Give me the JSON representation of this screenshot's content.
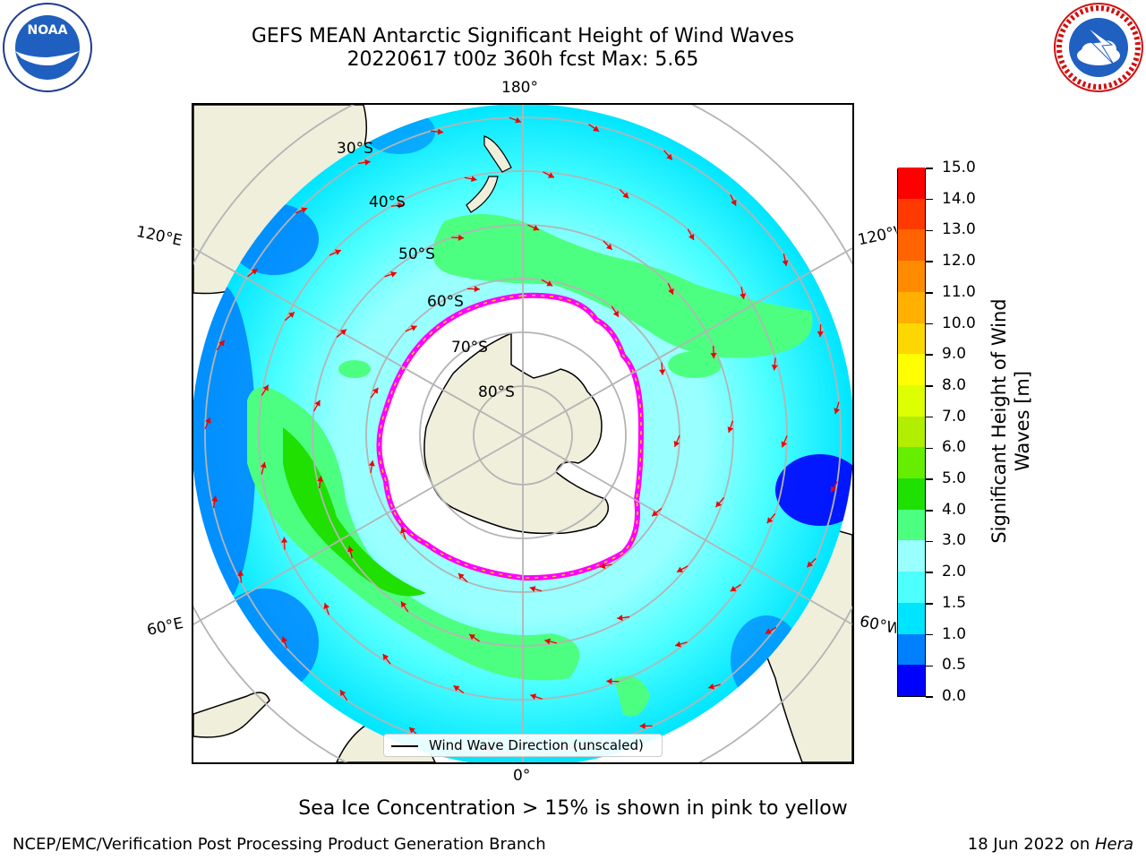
{
  "title": {
    "line1": "GEFS MEAN Antarctic Significant Height of Wind Waves",
    "line2": "20220617 t00z 360h fcst   Max: 5.65"
  },
  "logos": {
    "noaa_text": "NOAA",
    "noaa_ring_text": "NATIONAL OCEANIC AND ATMOSPHERIC ADMINISTRATION · U.S. DEPARTMENT OF COMMERCE",
    "nws_ring_text": "NATIONAL WEATHER SERVICE"
  },
  "map": {
    "longitude_labels": {
      "top": "180°",
      "bottom": "0°",
      "left_upper": "120°E",
      "left_lower": "60°E",
      "right_upper": "120°W",
      "right_lower": "60°W"
    },
    "latitude_labels": [
      "30°S",
      "40°S",
      "50°S",
      "60°S",
      "70°S",
      "80°S"
    ],
    "legend_label": "Wind Wave Direction (unscaled)",
    "colors": {
      "land": "#efefdc",
      "ocean_low": "#00e5ff",
      "ocean_mid": "#99ffff",
      "green": "#4dff80",
      "bright_green": "#1fe000",
      "blue": "#0080ff",
      "deep_blue": "#0000ff",
      "ice_edge": "#ff00ff",
      "arrow": "#ee0000",
      "grid": "#b4b4b4"
    }
  },
  "colorbar": {
    "title": "Significant Height of Wind Waves [m]",
    "ticks": [
      "0.0",
      "0.5",
      "1.0",
      "1.5",
      "2.0",
      "3.0",
      "4.0",
      "5.0",
      "6.0",
      "7.0",
      "8.0",
      "9.0",
      "10.0",
      "11.0",
      "12.0",
      "13.0",
      "14.0",
      "15.0"
    ],
    "colors": [
      "#0000ff",
      "#0080ff",
      "#00e5ff",
      "#4dffff",
      "#99ffff",
      "#4dff80",
      "#1fe000",
      "#66ee00",
      "#b2ee00",
      "#ddff00",
      "#ffff00",
      "#ffd700",
      "#ffb000",
      "#ff8c00",
      "#ff6400",
      "#ff3a00",
      "#ff0000"
    ]
  },
  "sea_ice_note": "Sea Ice Concentration > 15% is shown in pink to yellow",
  "footer": {
    "left": "NCEP/EMC/Verification Post Processing Product Generation Branch",
    "right_date": "18 Jun 2022 on ",
    "right_host": "Hera"
  }
}
